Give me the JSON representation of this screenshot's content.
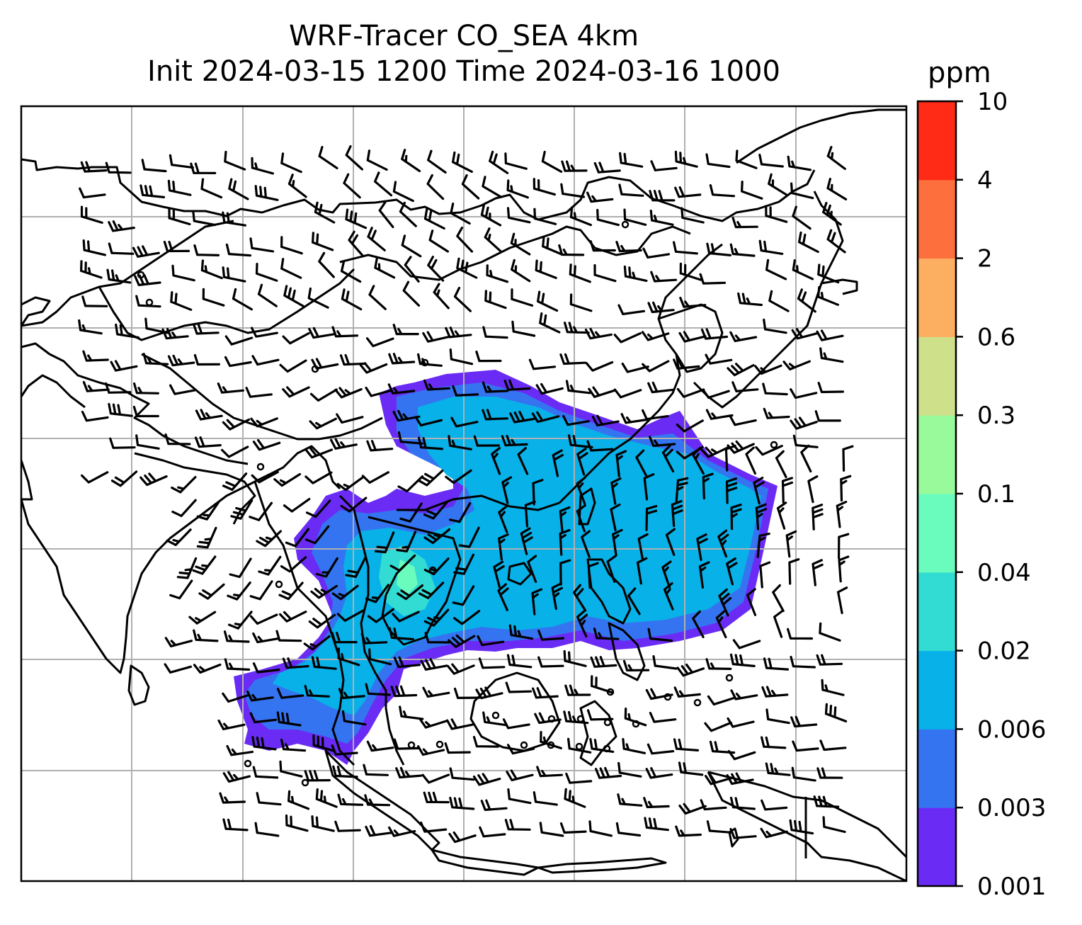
{
  "title": {
    "line1": "WRF-Tracer CO_SEA 4km",
    "line2": "Init 2024-03-15 1200 Time 2024-03-16 1000"
  },
  "colorbar": {
    "unit": "ppm",
    "levels": [
      "0.001",
      "0.003",
      "0.006",
      "0.02",
      "0.04",
      "0.1",
      "0.3",
      "0.6",
      "2",
      "4",
      "10"
    ],
    "colors": [
      "#6a2cf5",
      "#3574f0",
      "#08b1e8",
      "#33dcd3",
      "#6afcbd",
      "#98fa9a",
      "#cee08a",
      "#fcae61",
      "#fd6f3c",
      "#ff2b17"
    ]
  },
  "map": {
    "grid_color": "#b0b0b0",
    "coast_color": "#000000",
    "barb_color": "#000000"
  }
}
